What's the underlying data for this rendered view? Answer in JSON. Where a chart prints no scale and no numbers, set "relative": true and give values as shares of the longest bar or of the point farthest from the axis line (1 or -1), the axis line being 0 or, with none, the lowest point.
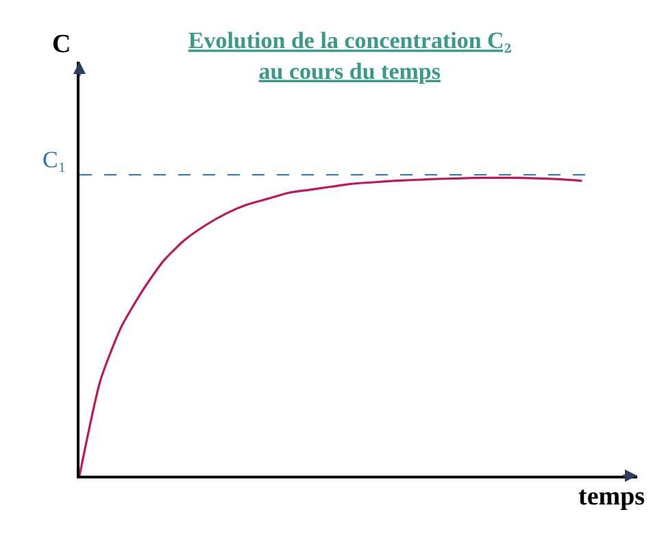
{
  "chart_data": {
    "type": "line",
    "relative": true,
    "title": "Evolution de la concentration C₂\nau cours du temps",
    "xlabel": "temps",
    "ylabel": "C",
    "categories": [
      null,
      null,
      null,
      null,
      null,
      null,
      null,
      null,
      null,
      null,
      null,
      null,
      null,
      null,
      null,
      null,
      null,
      null,
      null,
      null,
      null,
      null,
      null,
      null,
      null
    ],
    "series": [
      {
        "color": "#c2185b",
        "values": [
          0,
          0.32,
          0.5,
          0.62,
          0.72,
          0.79,
          0.84,
          0.88,
          0.91,
          0.93,
          0.95,
          0.96,
          0.97,
          0.98,
          0.985,
          0.99,
          0.993,
          0.996,
          0.998,
          1.0,
          1.0,
          1.0,
          0.998,
          0.995,
          0.99
        ]
      }
    ],
    "ref_lines": [
      {
        "axis": "y",
        "value": 1.01,
        "label": "C₁",
        "color": "#2e75b6",
        "line_style": "dashed"
      }
    ],
    "marker": "none",
    "line_style": "solid"
  }
}
